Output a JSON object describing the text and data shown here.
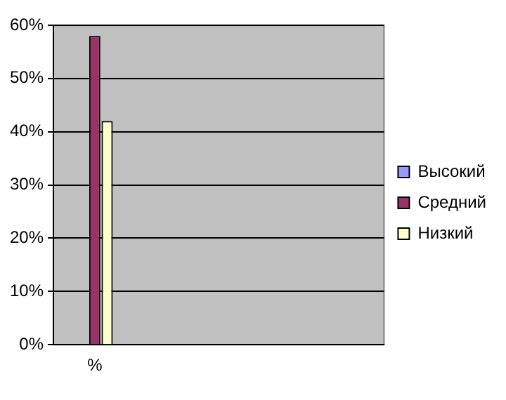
{
  "chart_data": {
    "type": "bar",
    "categories": [
      "%",
      null,
      null,
      null
    ],
    "series": [
      {
        "name": "Высокий",
        "color": "#9999ff",
        "values": [
          0,
          null,
          null,
          null
        ]
      },
      {
        "name": "Средний",
        "color": "#993366",
        "values": [
          58,
          null,
          null,
          null
        ]
      },
      {
        "name": "Низкий",
        "color": "#ffffcc",
        "values": [
          42,
          null,
          null,
          null
        ]
      }
    ],
    "ylim": [
      0,
      60
    ],
    "yticks": [
      {
        "value": 0,
        "label": "0%"
      },
      {
        "value": 10,
        "label": "10%"
      },
      {
        "value": 20,
        "label": "20%"
      },
      {
        "value": 30,
        "label": "30%"
      },
      {
        "value": 40,
        "label": "40%"
      },
      {
        "value": 50,
        "label": "50%"
      },
      {
        "value": 60,
        "label": "60%"
      }
    ],
    "grid": "y",
    "legend": "right"
  }
}
